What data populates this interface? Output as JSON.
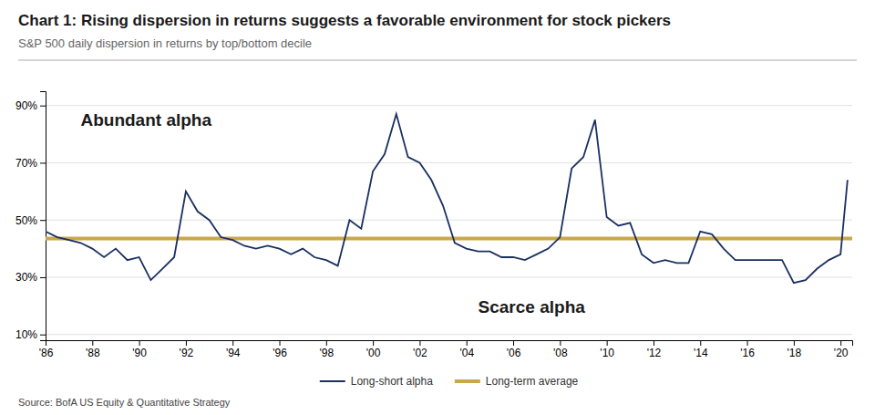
{
  "chart_data": {
    "type": "line",
    "title": "Chart 1: Rising dispersion in returns suggests a favorable environment for stock pickers",
    "subtitle": "S&P 500 daily dispersion in returns by top/bottom decile",
    "source": "Source: BofA US Equity & Quantitative Strategy",
    "x": [
      1986,
      1986.5,
      1987,
      1987.5,
      1988,
      1988.5,
      1989,
      1989.5,
      1990,
      1990.5,
      1991,
      1991.5,
      1992,
      1992.5,
      1993,
      1993.5,
      1994,
      1994.5,
      1995,
      1995.5,
      1996,
      1996.5,
      1997,
      1997.5,
      1998,
      1998.5,
      1999,
      1999.5,
      2000,
      2000.5,
      2001,
      2001.5,
      2002,
      2002.5,
      2003,
      2003.5,
      2004,
      2004.5,
      2005,
      2005.5,
      2006,
      2006.5,
      2007,
      2007.5,
      2008,
      2008.5,
      2009,
      2009.5,
      2010,
      2010.5,
      2011,
      2011.5,
      2012,
      2012.5,
      2013,
      2013.5,
      2014,
      2014.5,
      2015,
      2015.5,
      2016,
      2016.5,
      2017,
      2017.5,
      2018,
      2018.5,
      2019,
      2019.5,
      2020,
      2020.3
    ],
    "series": [
      {
        "name": "Long-short alpha",
        "color": "#1a3060",
        "values": [
          0.46,
          0.44,
          0.43,
          0.42,
          0.4,
          0.37,
          0.4,
          0.36,
          0.37,
          0.29,
          0.33,
          0.37,
          0.6,
          0.53,
          0.5,
          0.44,
          0.43,
          0.41,
          0.4,
          0.41,
          0.4,
          0.38,
          0.4,
          0.37,
          0.36,
          0.34,
          0.5,
          0.47,
          0.67,
          0.73,
          0.87,
          0.72,
          0.7,
          0.64,
          0.55,
          0.42,
          0.4,
          0.39,
          0.39,
          0.37,
          0.37,
          0.36,
          0.38,
          0.4,
          0.44,
          0.68,
          0.72,
          0.85,
          0.51,
          0.48,
          0.49,
          0.38,
          0.35,
          0.36,
          0.35,
          0.35,
          0.46,
          0.45,
          0.4,
          0.36,
          0.36,
          0.36,
          0.36,
          0.36,
          0.28,
          0.29,
          0.33,
          0.36,
          0.38,
          0.64
        ]
      }
    ],
    "reference_lines": [
      {
        "name": "Long-term average",
        "color": "#c9a84c",
        "value": 0.435
      }
    ],
    "annotations": [
      {
        "text": "Abundant alpha",
        "x": 1987.5,
        "y": 0.83
      },
      {
        "text": "Scarce alpha",
        "x": 2004.5,
        "y": 0.175
      }
    ],
    "xlim": [
      1986,
      2020.5
    ],
    "xticks": [
      {
        "value": 1986,
        "label": "'86"
      },
      {
        "value": 1988,
        "label": "'88"
      },
      {
        "value": 1990,
        "label": "'90"
      },
      {
        "value": 1992,
        "label": "'92"
      },
      {
        "value": 1994,
        "label": "'94"
      },
      {
        "value": 1996,
        "label": "'96"
      },
      {
        "value": 1998,
        "label": "'98"
      },
      {
        "value": 2000,
        "label": "'00"
      },
      {
        "value": 2002,
        "label": "'02"
      },
      {
        "value": 2004,
        "label": "'04"
      },
      {
        "value": 2006,
        "label": "'06"
      },
      {
        "value": 2008,
        "label": "'08"
      },
      {
        "value": 2010,
        "label": "'10"
      },
      {
        "value": 2012,
        "label": "'12"
      },
      {
        "value": 2014,
        "label": "'14"
      },
      {
        "value": 2016,
        "label": "'16"
      },
      {
        "value": 2018,
        "label": "'18"
      },
      {
        "value": 2020,
        "label": "'20"
      }
    ],
    "ylim": [
      0.08,
      0.95
    ],
    "yticks": [
      {
        "value": 0.1,
        "label": "10%"
      },
      {
        "value": 0.3,
        "label": "30%"
      },
      {
        "value": 0.5,
        "label": "50%"
      },
      {
        "value": 0.7,
        "label": "70%"
      },
      {
        "value": 0.9,
        "label": "90%"
      }
    ],
    "grid": true,
    "legend": "bottom"
  }
}
